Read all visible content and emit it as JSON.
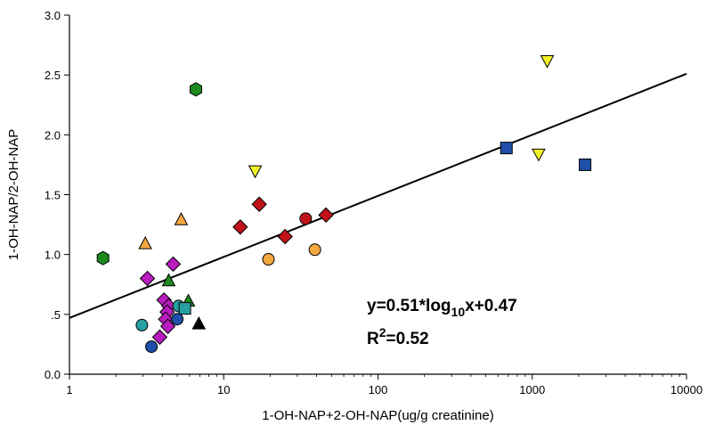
{
  "chart_data": {
    "type": "scatter",
    "xlabel": "1-OH-NAP+2-OH-NAP(ug/g creatinine)",
    "ylabel": "1-OH-NAP/2-OH-NAP",
    "xscale": "log",
    "xlim": [
      1,
      10000
    ],
    "ylim": [
      0,
      3.0
    ],
    "x_ticks": [
      1,
      10,
      100,
      1000,
      10000
    ],
    "x_tick_labels": [
      "1",
      "10",
      "100",
      "1000",
      "10000"
    ],
    "y_ticks": [
      0,
      0.5,
      1.0,
      1.5,
      2.0,
      2.5,
      3.0
    ],
    "y_tick_labels": [
      "0.0",
      ".5",
      "1.0",
      "1.5",
      "2.0",
      "2.5",
      "3.0"
    ],
    "grid": false,
    "annotations": {
      "equation_prefix": "y=0.51*log",
      "equation_sub": "10",
      "equation_suffix": "x+0.47",
      "r2_prefix": "R",
      "r2_sup": "2",
      "r2_suffix": "=0.52"
    },
    "fit_line": {
      "slope": 0.51,
      "intercept": 0.47,
      "x_range": [
        1,
        10000
      ]
    },
    "series": [
      {
        "marker": "hexagon",
        "color": "#1e8a1e",
        "points": [
          [
            1.65,
            0.97
          ],
          [
            6.6,
            2.38
          ]
        ]
      },
      {
        "marker": "triangle-up",
        "color": "#f4a640",
        "points": [
          [
            3.1,
            1.09
          ],
          [
            5.3,
            1.29
          ]
        ]
      },
      {
        "marker": "triangle-up",
        "color": "#1e8a1e",
        "points": [
          [
            4.4,
            0.78
          ],
          [
            5.9,
            0.61
          ]
        ]
      },
      {
        "marker": "triangle-up",
        "color": "#000000",
        "points": [
          [
            6.9,
            0.42
          ]
        ]
      },
      {
        "marker": "diamond",
        "color": "#b91cc0",
        "points": [
          [
            3.2,
            0.8
          ],
          [
            4.7,
            0.92
          ],
          [
            4.1,
            0.62
          ],
          [
            4.4,
            0.57
          ],
          [
            4.3,
            0.52
          ],
          [
            4.2,
            0.46
          ],
          [
            4.35,
            0.4
          ],
          [
            3.85,
            0.31
          ]
        ]
      },
      {
        "marker": "circle",
        "color": "#26a0a0",
        "points": [
          [
            2.95,
            0.41
          ],
          [
            5.1,
            0.57
          ]
        ]
      },
      {
        "marker": "square",
        "color": "#26a0a0",
        "points": [
          [
            5.6,
            0.55
          ]
        ]
      },
      {
        "marker": "circle",
        "color": "#1f4fa8",
        "points": [
          [
            3.4,
            0.23
          ],
          [
            5.0,
            0.46
          ]
        ]
      },
      {
        "marker": "diamond",
        "color": "#c0141a",
        "points": [
          [
            12.8,
            1.23
          ],
          [
            17.0,
            1.42
          ],
          [
            25.0,
            1.15
          ],
          [
            46.0,
            1.33
          ]
        ]
      },
      {
        "marker": "circle",
        "color": "#c0141a",
        "points": [
          [
            34.0,
            1.3
          ]
        ]
      },
      {
        "marker": "triangle-down",
        "color": "#f2f22a",
        "points": [
          [
            16.0,
            1.7
          ],
          [
            1100.0,
            1.84
          ],
          [
            1250.0,
            2.62
          ]
        ]
      },
      {
        "marker": "circle",
        "color": "#f4a640",
        "points": [
          [
            19.5,
            0.96
          ],
          [
            39.0,
            1.04
          ]
        ]
      },
      {
        "marker": "square",
        "color": "#1f4fa8",
        "points": [
          [
            680.0,
            1.89
          ],
          [
            2200.0,
            1.75
          ]
        ]
      }
    ]
  }
}
